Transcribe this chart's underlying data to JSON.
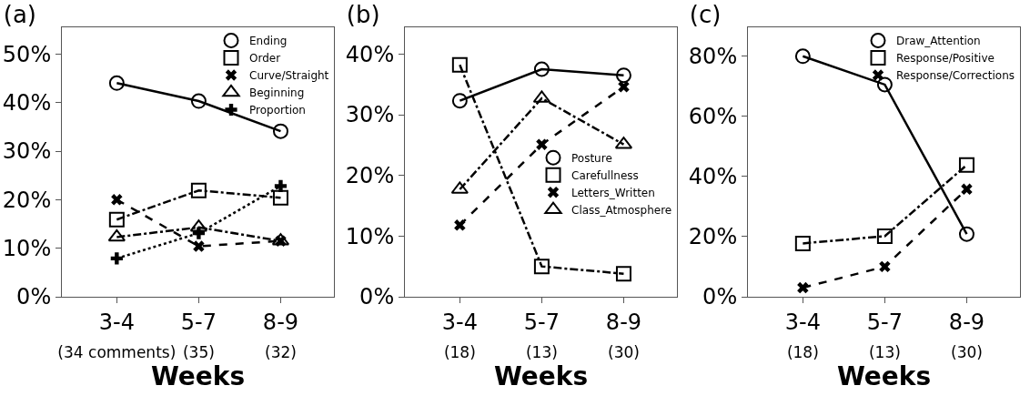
{
  "chart_data": [
    {
      "type": "line",
      "title": "(a)",
      "xlabel": "Weeks",
      "categories": [
        "3-4\n(34 comments)",
        "5-7\n(35)",
        "8-9\n(32)"
      ],
      "ylim": [
        0,
        55.5
      ],
      "yticks": [
        {
          "value": 0,
          "label": "0%"
        },
        {
          "value": 10,
          "label": "10%"
        },
        {
          "value": 20,
          "label": "20%"
        },
        {
          "value": 30,
          "label": "30%"
        },
        {
          "value": 40,
          "label": "40%"
        },
        {
          "value": 50,
          "label": "50%"
        }
      ],
      "grid": false,
      "legend": "top right",
      "series": [
        {
          "name": "Ending",
          "color": "#000000",
          "marker": "circle",
          "line_style": "solid",
          "values": [
            44.0,
            40.3,
            34.1
          ]
        },
        {
          "name": "Order",
          "color": "#000000",
          "marker": "square",
          "line_style": "dashdot",
          "values": [
            15.9,
            21.9,
            20.4
          ]
        },
        {
          "name": "Curve/Straight",
          "color": "#000000",
          "marker": "cross",
          "line_style": "dashed",
          "values": [
            20.0,
            10.4,
            11.5
          ]
        },
        {
          "name": "Beginning",
          "color": "#000000",
          "marker": "triangle",
          "line_style": "dashdot",
          "values": [
            12.3,
            14.3,
            11.5
          ]
        },
        {
          "name": "Proportion",
          "color": "#000000",
          "marker": "plus",
          "line_style": "dotted",
          "values": [
            7.9,
            13.1,
            22.8
          ]
        }
      ]
    },
    {
      "type": "line",
      "title": "(b)",
      "xlabel": "Weeks",
      "categories": [
        "3-4\n(18)",
        "5-7\n(13)",
        "8-9\n(30)"
      ],
      "ylim": [
        0,
        44.4
      ],
      "yticks": [
        {
          "value": 0,
          "label": "0%"
        },
        {
          "value": 10,
          "label": "10%"
        },
        {
          "value": 20,
          "label": "20%"
        },
        {
          "value": 30,
          "label": "30%"
        },
        {
          "value": 40,
          "label": "40%"
        }
      ],
      "grid": false,
      "legend": "right",
      "series": [
        {
          "name": "Posture",
          "color": "#000000",
          "marker": "circle",
          "line_style": "solid",
          "values": [
            32.3,
            37.5,
            36.5
          ]
        },
        {
          "name": "Carefullness",
          "color": "#000000",
          "marker": "square",
          "line_style": "dashdot",
          "values": [
            38.2,
            5.0,
            3.8
          ]
        },
        {
          "name": "Letters_Written",
          "color": "#000000",
          "marker": "cross",
          "line_style": "dashed",
          "values": [
            11.8,
            25.1,
            34.6
          ]
        },
        {
          "name": "Class_Atmosphere",
          "color": "#000000",
          "marker": "triangle",
          "line_style": "dashdot",
          "values": [
            17.7,
            32.7,
            25.1
          ]
        }
      ]
    },
    {
      "type": "line",
      "title": "(c)",
      "xlabel": "Weeks",
      "categories": [
        "3-4\n(18)",
        "5-7\n(13)",
        "8-9\n(30)"
      ],
      "ylim": [
        0,
        89.4
      ],
      "yticks": [
        {
          "value": 0,
          "label": "0%"
        },
        {
          "value": 20,
          "label": "20%"
        },
        {
          "value": 40,
          "label": "40%"
        },
        {
          "value": 60,
          "label": "60%"
        },
        {
          "value": 80,
          "label": "80%"
        }
      ],
      "grid": false,
      "legend": "top right",
      "series": [
        {
          "name": "Draw_Attention",
          "color": "#000000",
          "marker": "circle",
          "line_style": "solid",
          "values": [
            79.8,
            70.4,
            20.8
          ]
        },
        {
          "name": "Response/Positive",
          "color": "#000000",
          "marker": "square",
          "line_style": "dashdot",
          "values": [
            17.7,
            20.1,
            43.7
          ]
        },
        {
          "name": "Response/Corrections",
          "color": "#000000",
          "marker": "cross",
          "line_style": "dashed",
          "values": [
            3.0,
            10.0,
            35.7
          ]
        }
      ]
    }
  ]
}
